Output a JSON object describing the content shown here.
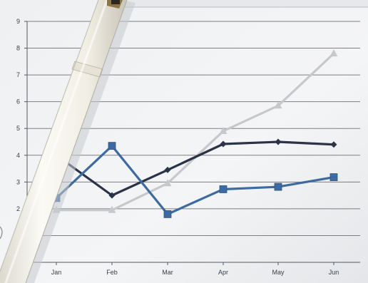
{
  "chart_data": {
    "type": "line",
    "title": "",
    "xlabel": "",
    "ylabel": "",
    "categories": [
      "Jan",
      "Feb",
      "Mar",
      "Apr",
      "May",
      "Jun"
    ],
    "y_ticks": [
      "1",
      "2",
      "3",
      "4",
      "5",
      "6",
      "7",
      "8",
      "9"
    ],
    "ylim": [
      0,
      9
    ],
    "grid": true,
    "legend": "none",
    "series": [
      {
        "values": [
          4.0,
          2.5,
          3.45,
          4.42,
          4.5,
          4.4
        ],
        "color": "#2a3347",
        "marker": "diamond"
      },
      {
        "values": [
          2.4,
          4.35,
          1.8,
          2.73,
          2.82,
          3.18
        ],
        "color": "#3d6aa0",
        "marker": "square"
      },
      {
        "values": [
          1.95,
          1.95,
          2.95,
          4.9,
          5.85,
          7.8
        ],
        "color": "#c6c9cc",
        "marker": "triangle"
      }
    ],
    "colors": {
      "paper": "#f1f2f4",
      "grid": "#55595f",
      "pen_body": "#f4f2ea",
      "pen_accent": "#8b7448"
    }
  }
}
